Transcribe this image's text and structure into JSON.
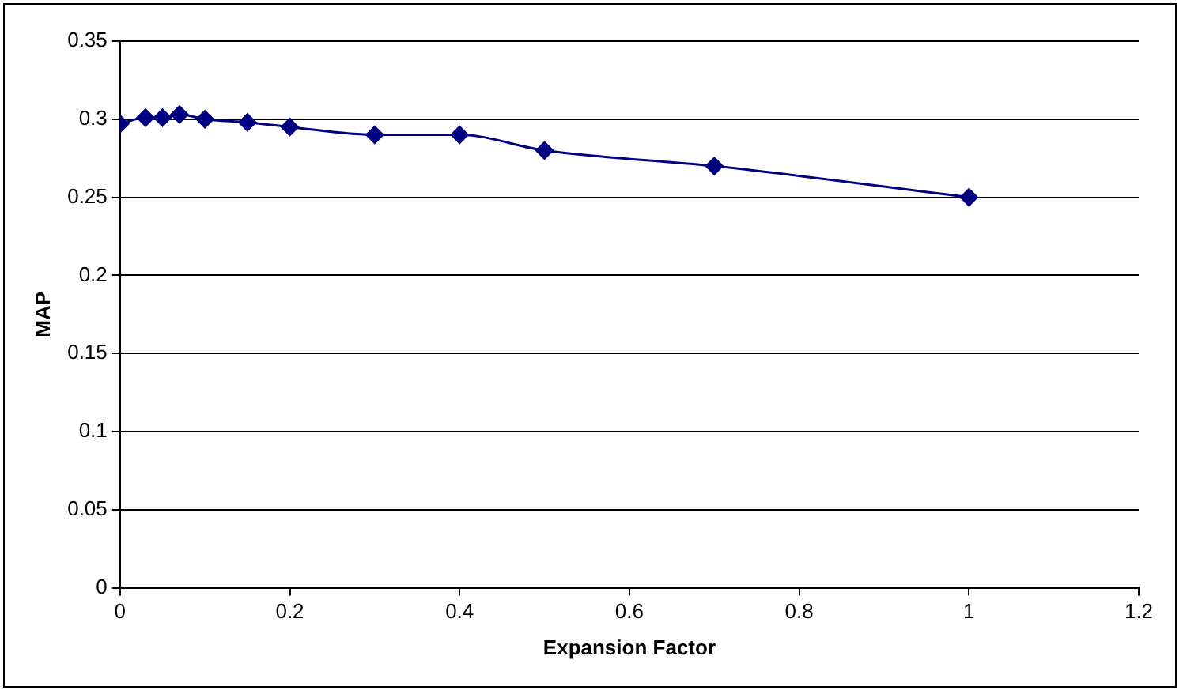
{
  "chart_data": {
    "type": "line",
    "xlabel": "Expansion Factor",
    "ylabel": "MAP",
    "x": [
      0,
      0.03,
      0.05,
      0.07,
      0.1,
      0.15,
      0.2,
      0.3,
      0.4,
      0.5,
      0.7,
      1
    ],
    "series": [
      {
        "color": "#000080",
        "values": [
          0.297,
          0.301,
          0.301,
          0.303,
          0.3,
          0.298,
          0.295,
          0.29,
          0.29,
          0.28,
          0.27,
          0.25
        ]
      }
    ],
    "xlim": [
      0,
      1.2
    ],
    "xticks": [
      0,
      0.2,
      0.4,
      0.6,
      0.8,
      1,
      1.2
    ],
    "ylim": [
      0,
      0.35
    ],
    "yticks": [
      0,
      0.05,
      0.1,
      0.15,
      0.2,
      0.25,
      0.3,
      0.35
    ],
    "grid": "y",
    "legend": false,
    "marker": "diamond",
    "line_style": "solid"
  }
}
